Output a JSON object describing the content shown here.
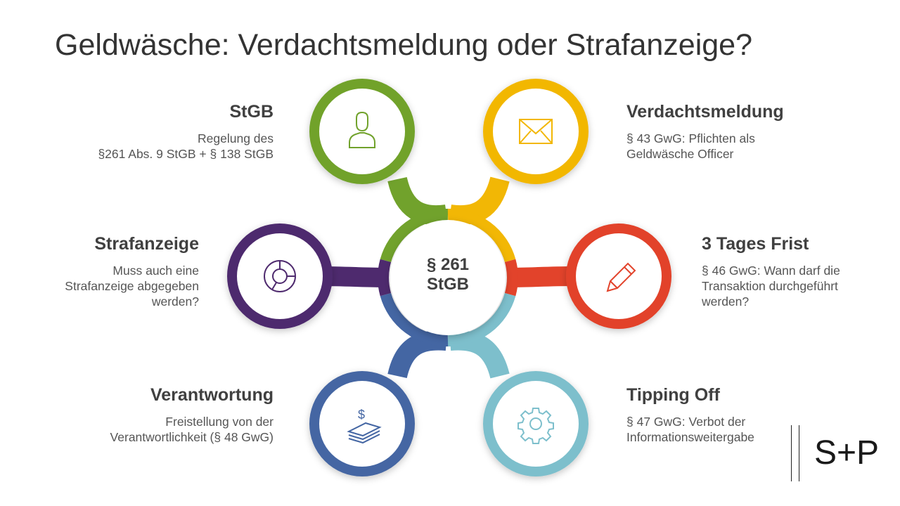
{
  "title": "Geldwäsche: Verdachtsmeldung oder Strafanzeige?",
  "center": {
    "line1": "§ 261",
    "line2": "StGB"
  },
  "colors": {
    "green": "#71a22c",
    "yellow": "#f2b705",
    "red": "#e2432b",
    "teal": "#7dbfcc",
    "blue": "#4466a3",
    "purple": "#4e2a6e"
  },
  "nodes": [
    {
      "id": "stgb",
      "heading": "StGB",
      "desc": "Regelung des\n§261 Abs. 9 StGB + § 138 StGB",
      "color": "green",
      "icon": "user-icon"
    },
    {
      "id": "verdachtsmeldung",
      "heading": "Verdachtsmeldung",
      "desc": "§ 43 GwG: Pflichten als\nGeldwäsche Officer",
      "color": "yellow",
      "icon": "envelope-icon"
    },
    {
      "id": "strafanzeige",
      "heading": "Strafanzeige",
      "desc": "Muss auch eine\nStrafanzeige abgegeben\nwerden?",
      "color": "purple",
      "icon": "pie-chart-icon"
    },
    {
      "id": "frist",
      "heading": "3 Tages Frist",
      "desc": "§ 46 GwG: Wann darf die\nTransaktion durchgeführt\nwerden?",
      "color": "red",
      "icon": "pencil-icon"
    },
    {
      "id": "verantwortung",
      "heading": "Verantwortung",
      "desc": "Freistellung von der\nVerantwortlichkeit (§ 48 GwG)",
      "color": "blue",
      "icon": "money-stack-icon"
    },
    {
      "id": "tipping",
      "heading": "Tipping Off",
      "desc": "§ 47 GwG: Verbot der\nInformationsweitergabe",
      "color": "teal",
      "icon": "gear-icon"
    }
  ],
  "logo": "S+P"
}
